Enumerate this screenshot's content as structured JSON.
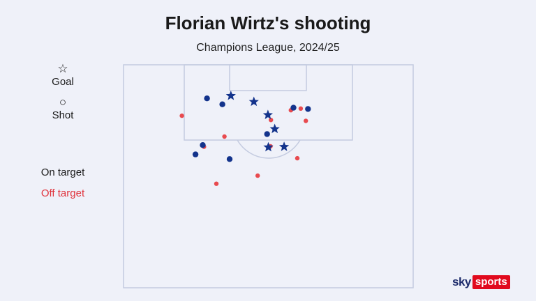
{
  "title": "Florian Wirtz's shooting",
  "subtitle": "Champions League, 2024/25",
  "legend": {
    "goal_symbol": "☆",
    "goal_label": "Goal",
    "shot_symbol": "○",
    "shot_label": "Shot",
    "on_target_label": "On target",
    "off_target_label": "Off target",
    "on_target_color": "#13338c",
    "off_target_color": "#e84a4f"
  },
  "logo": {
    "sky": "sky",
    "sports": "sports"
  },
  "chart_data": {
    "type": "scatter",
    "title": "Florian Wirtz's shooting",
    "subtitle": "Champions League, 2024/25",
    "x_range": [
      0,
      68
    ],
    "y_range": [
      0,
      52.5
    ],
    "series": [
      {
        "name": "Goal",
        "outcome": "on-target",
        "marker": "star",
        "color": "#13338c",
        "points": [
          {
            "x": 25.2,
            "y": 7.3
          },
          {
            "x": 30.6,
            "y": 8.7
          },
          {
            "x": 33.9,
            "y": 11.8
          },
          {
            "x": 35.5,
            "y": 15.1
          },
          {
            "x": 34.0,
            "y": 19.4
          },
          {
            "x": 37.7,
            "y": 19.3
          }
        ]
      },
      {
        "name": "Shot",
        "outcome": "on-target",
        "marker": "circle",
        "color": "#13338c",
        "points": [
          {
            "x": 19.6,
            "y": 7.9
          },
          {
            "x": 23.2,
            "y": 9.3
          },
          {
            "x": 39.9,
            "y": 10.1
          },
          {
            "x": 43.3,
            "y": 10.4
          },
          {
            "x": 33.7,
            "y": 16.3
          },
          {
            "x": 18.6,
            "y": 18.9
          },
          {
            "x": 16.9,
            "y": 21.1
          },
          {
            "x": 24.9,
            "y": 22.2
          }
        ]
      },
      {
        "name": "Shot",
        "outcome": "off-target",
        "marker": "circle",
        "color": "#e84a4f",
        "points": [
          {
            "x": 13.7,
            "y": 12.0
          },
          {
            "x": 34.6,
            "y": 13.0
          },
          {
            "x": 39.3,
            "y": 10.7
          },
          {
            "x": 41.6,
            "y": 10.3
          },
          {
            "x": 42.8,
            "y": 13.2
          },
          {
            "x": 23.7,
            "y": 16.9
          },
          {
            "x": 18.9,
            "y": 19.3
          },
          {
            "x": 34.5,
            "y": 19.2
          },
          {
            "x": 40.8,
            "y": 22.0
          },
          {
            "x": 31.5,
            "y": 26.1
          },
          {
            "x": 21.8,
            "y": 28.0
          }
        ]
      }
    ]
  }
}
